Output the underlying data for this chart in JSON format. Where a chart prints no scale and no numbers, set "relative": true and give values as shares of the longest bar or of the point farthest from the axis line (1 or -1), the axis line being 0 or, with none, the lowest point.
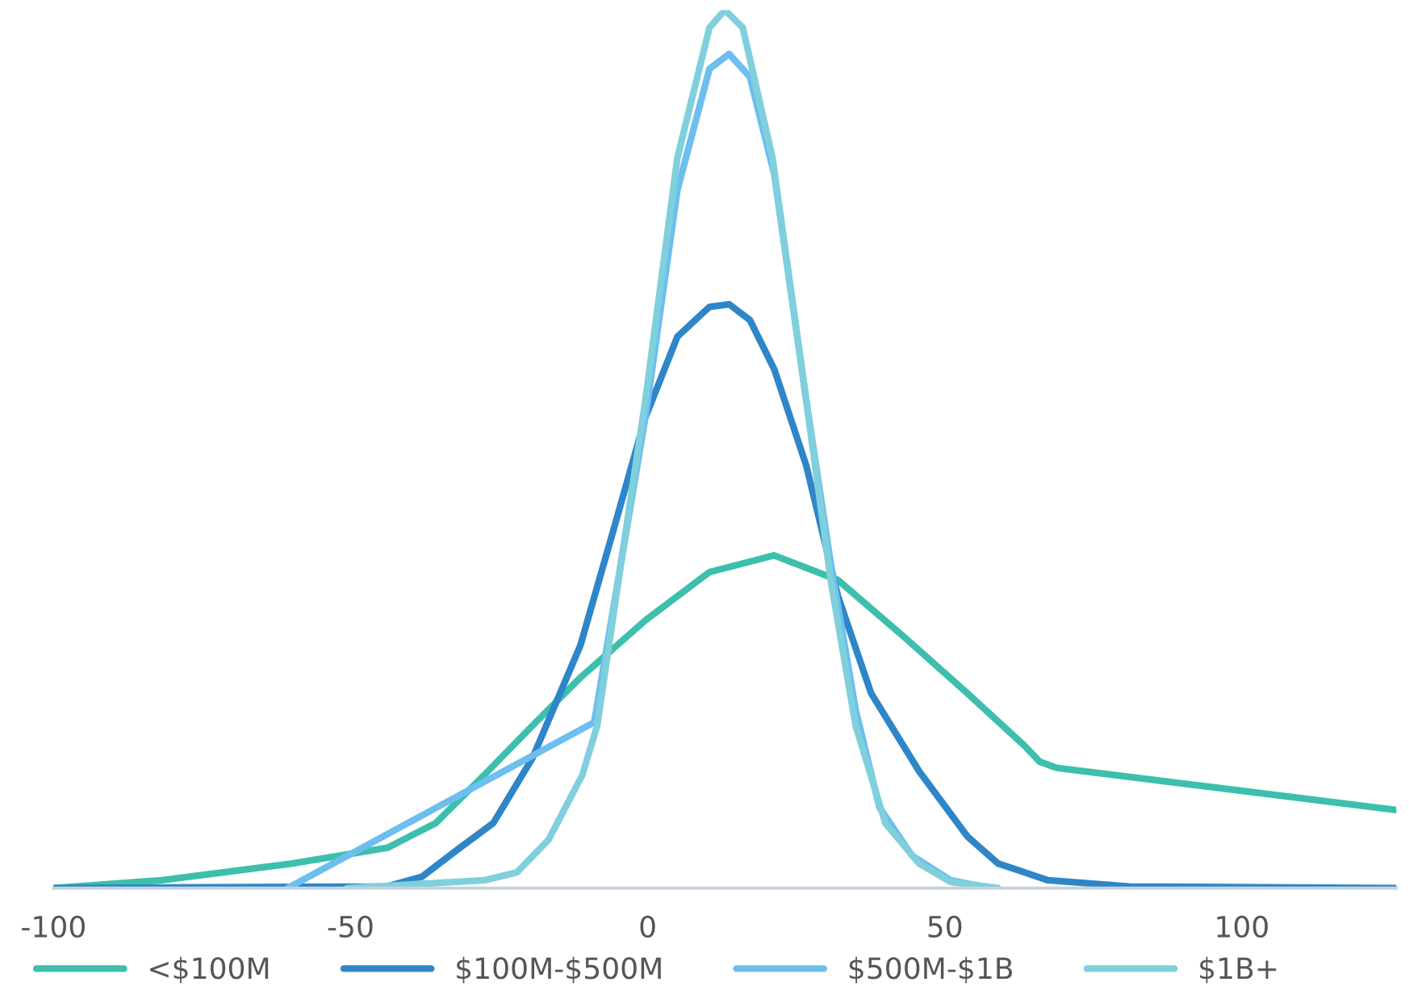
{
  "chart_data": {
    "type": "line",
    "relative": true,
    "xlim": [
      -100,
      126
    ],
    "xticks": [
      -100,
      -50,
      0,
      50,
      100
    ],
    "grid": false,
    "legend": "bottom",
    "marker": "none",
    "line_style": "solid",
    "series": [
      {
        "name": "<$100M",
        "color": "#3dbfad",
        "x": [
          -100,
          -81.8,
          -60,
          -43.8,
          -35.7,
          -27.5,
          -19.4,
          -11.3,
          -0.4,
          10.4,
          21.3,
          32,
          43,
          53.8,
          63.3,
          66,
          68.8,
          126
        ],
        "values": [
          0,
          0.009,
          0.028,
          0.046,
          0.074,
          0.129,
          0.185,
          0.24,
          0.305,
          0.36,
          0.379,
          0.351,
          0.287,
          0.222,
          0.163,
          0.144,
          0.137,
          0.089
        ]
      },
      {
        "name": "$100M-$500M",
        "color": "#2e86c8",
        "x": [
          -100,
          -43.8,
          -38,
          -31.6,
          -26,
          -19.4,
          -11.3,
          -5.8,
          -0.4,
          5,
          10.4,
          13.7,
          17.2,
          21.3,
          26.7,
          32,
          37.6,
          45.7,
          53.8,
          59,
          67.4,
          81,
          126
        ],
        "values": [
          0,
          0.002,
          0.013,
          0.046,
          0.074,
          0.148,
          0.277,
          0.407,
          0.536,
          0.628,
          0.662,
          0.665,
          0.647,
          0.591,
          0.481,
          0.333,
          0.222,
          0.133,
          0.059,
          0.028,
          0.009,
          0.002,
          0
        ]
      },
      {
        "name": "$500M-$1B",
        "color": "#6cbfee",
        "x": [
          -60.6,
          -9,
          -4.5,
          -0.4,
          5,
          10.4,
          13.7,
          17.2,
          21.3,
          26.7,
          30.8,
          35,
          39,
          44.5,
          51,
          57.8
        ],
        "values": [
          0,
          0.189,
          0.37,
          0.536,
          0.795,
          0.933,
          0.95,
          0.924,
          0.813,
          0.555,
          0.37,
          0.203,
          0.092,
          0.037,
          0.009,
          0
        ]
      },
      {
        "name": "$1B+",
        "color": "#7fd0dc",
        "x": [
          -50.6,
          -27.5,
          -22,
          -16.7,
          -11,
          -8.5,
          -4.5,
          -0.4,
          5,
          10.4,
          13,
          16,
          21,
          26.7,
          30.8,
          35,
          40,
          45.7,
          51,
          59
        ],
        "values": [
          0,
          0.009,
          0.018,
          0.055,
          0.129,
          0.185,
          0.37,
          0.555,
          0.832,
          0.98,
          1,
          0.98,
          0.832,
          0.555,
          0.351,
          0.185,
          0.074,
          0.028,
          0.007,
          0
        ]
      }
    ]
  }
}
